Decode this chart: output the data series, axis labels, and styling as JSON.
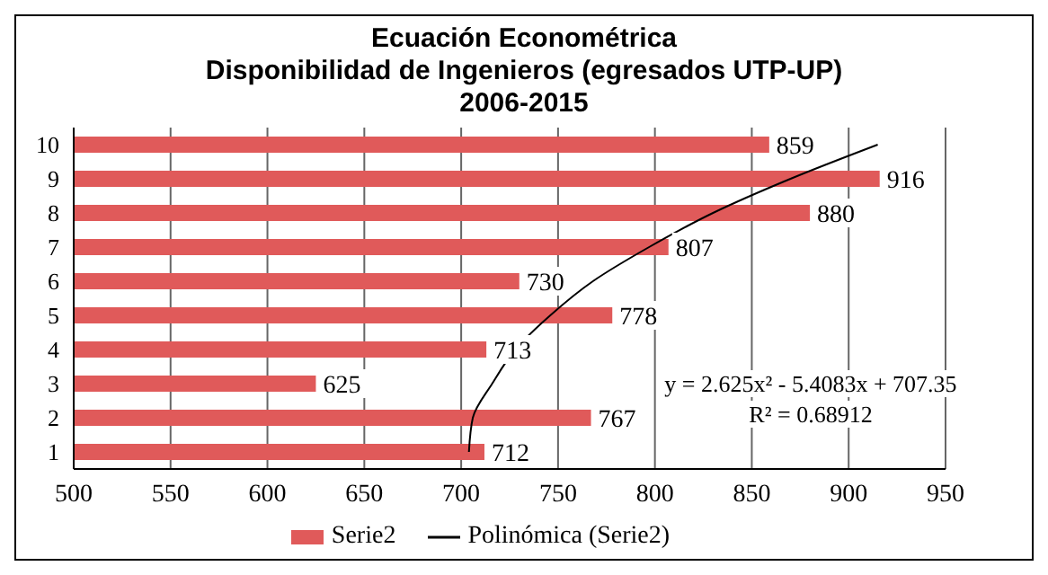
{
  "chart_data": {
    "type": "bar",
    "orientation": "horizontal",
    "title": "Ecuación Econométrica",
    "subtitle": "Disponibilidad de Ingenieros (egresados UTP-UP)\n2006-2015",
    "categories": [
      "10",
      "9",
      "8",
      "7",
      "6",
      "5",
      "4",
      "3",
      "2",
      "1"
    ],
    "series": [
      {
        "name": "Serie2",
        "color": "#e05a5a",
        "values": [
          859,
          916,
          880,
          807,
          730,
          778,
          713,
          625,
          767,
          712
        ],
        "value_labels": [
          "859",
          "916",
          "880",
          "807",
          "730",
          "778",
          "713",
          "625",
          "767",
          "712"
        ]
      },
      {
        "name": "Polinómica (Serie2)",
        "type": "line",
        "color": "#000000",
        "values": [
          915,
          870,
          830,
          797,
          768,
          746,
          728,
          716,
          706,
          704
        ]
      }
    ],
    "xlim": [
      500,
      950
    ],
    "xticks": [
      500,
      550,
      600,
      650,
      700,
      750,
      800,
      850,
      900,
      950
    ],
    "grid": "x",
    "legend": "bottom",
    "marker": "none",
    "annotations": [
      "y = 2.625x² - 5.4083x + 707.35",
      "R² = 0.68912"
    ]
  }
}
